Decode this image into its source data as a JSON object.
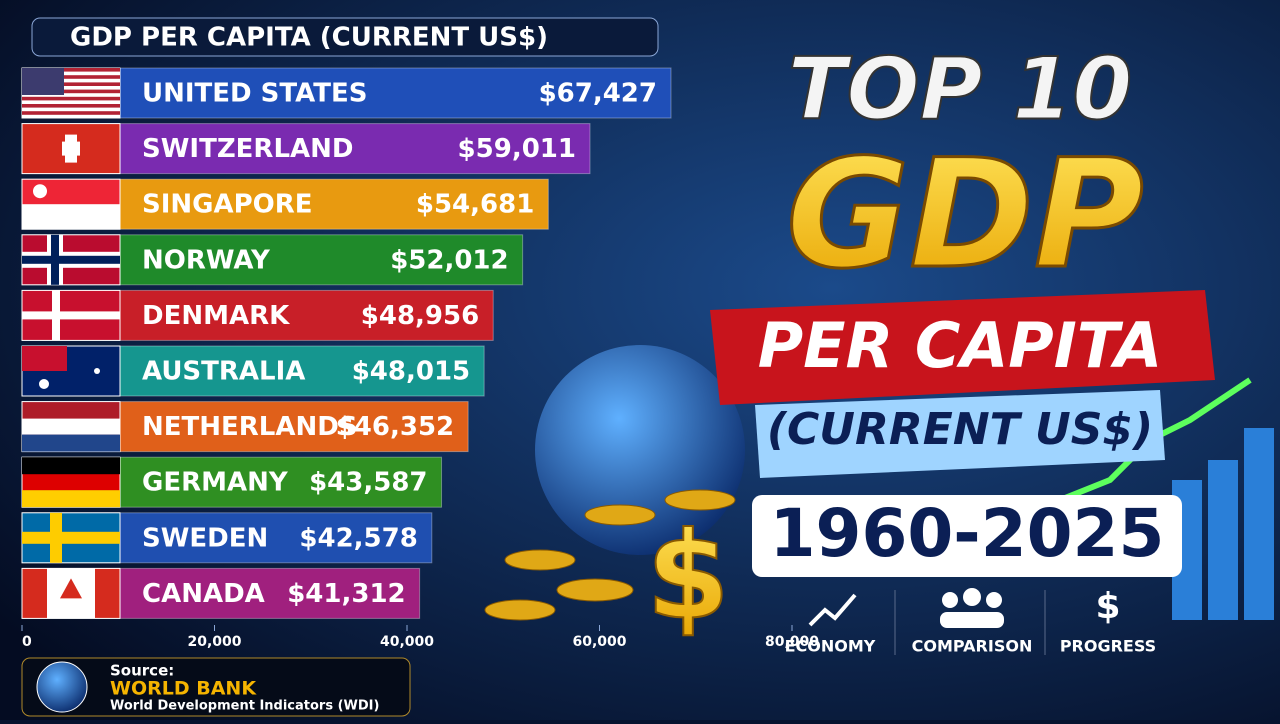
{
  "chart_data": {
    "type": "bar",
    "title": "GDP PER CAPITA (CURRENT US$)",
    "categories": [
      "UNITED STATES",
      "SWITZERLAND",
      "SINGAPORE",
      "NORWAY",
      "DENMARK",
      "AUSTRALIA",
      "NETHERLANDS",
      "GERMANY",
      "SWEDEN",
      "CANADA"
    ],
    "values": [
      67427,
      59011,
      54681,
      52012,
      48956,
      48015,
      46352,
      43587,
      42578,
      41312
    ],
    "value_labels": [
      "$67,427",
      "$59,011",
      "$54,681",
      "$52,012",
      "$48,956",
      "$48,015",
      "$46,352",
      "$43,587",
      "$42,578",
      "$41,312"
    ],
    "colors": [
      "#1f4fb8",
      "#7a2bb0",
      "#e89a10",
      "#1f8a2a",
      "#c81f28",
      "#15968f",
      "#e0601a",
      "#2f8f22",
      "#1f4fb0",
      "#a0207e"
    ],
    "xlim": [
      0,
      80000
    ],
    "xticks": [
      0,
      {
        "value": 20000,
        "label": "20,000"
      },
      {
        "value": 40000,
        "label": "40,000"
      },
      {
        "value": 60000,
        "label": "60,000"
      },
      {
        "value": 80000,
        "label": "80,000"
      }
    ]
  },
  "headline": {
    "line1": "TOP 10",
    "line2": "GDP",
    "line3": "PER CAPITA",
    "line4": "(CURRENT US$)",
    "years": "1960-2025"
  },
  "icons": [
    "ECONOMY",
    "COMPARISON",
    "PROGRESS"
  ],
  "source": {
    "label": "Source:",
    "name": "WORLD BANK",
    "detail": "World Development Indicators (WDI)"
  }
}
